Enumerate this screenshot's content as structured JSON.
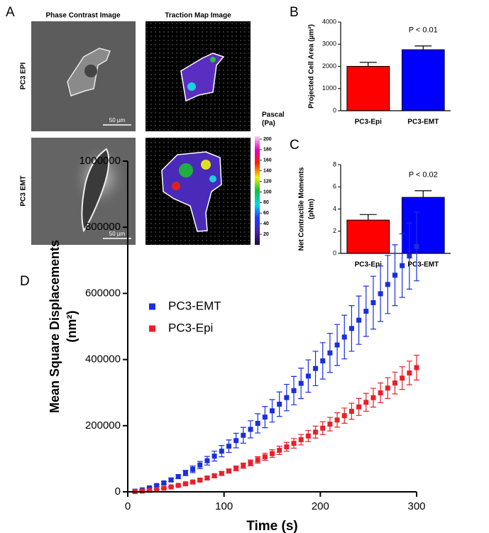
{
  "panel_labels": [
    "A",
    "B",
    "C",
    "D"
  ],
  "panel_a": {
    "columns": [
      "Phase Contrast Image",
      "Traction Map Image"
    ],
    "rows": [
      "PC3 EPI",
      "PC3 EMT"
    ],
    "scale_bar": "50 µm",
    "colorbar_title": [
      "Pascal",
      "(Pa)"
    ],
    "colorbar_ticks": [
      20,
      40,
      60,
      80,
      100,
      120,
      140,
      160,
      180,
      200
    ]
  },
  "chart_data": [
    {
      "type": "bar",
      "ylabel": [
        "Projected Cell Area (µm²)"
      ],
      "categories": [
        "PC3-Epi",
        "PC3-EMT"
      ],
      "values": [
        2000,
        2750
      ],
      "errors": [
        180,
        170
      ],
      "colors": [
        "#ff0000",
        "#0000ff"
      ],
      "annotation": "P < 0.01",
      "ylim": [
        0,
        4000
      ],
      "yticks": [
        0,
        1000,
        2000,
        3000,
        4000
      ]
    },
    {
      "type": "bar",
      "ylabel": [
        "Net Contractile Moments",
        "(pNm)"
      ],
      "categories": [
        "PC3-Epi",
        "PC3-EMT"
      ],
      "values": [
        3.0,
        5.05
      ],
      "errors": [
        0.5,
        0.6
      ],
      "colors": [
        "#ff0000",
        "#0000ff"
      ],
      "annotation": "P < 0.02",
      "ylim": [
        0,
        8
      ],
      "yticks": [
        0,
        2,
        4,
        6,
        8
      ]
    },
    {
      "type": "scatter",
      "xlabel": "Time (s)",
      "ylabel": [
        "Mean Square Displacements",
        "(nm²)"
      ],
      "legend": "upper-left",
      "x": [
        7.5,
        15,
        22.5,
        30,
        37.5,
        45,
        52.5,
        60,
        67.5,
        75,
        82.5,
        90,
        97.5,
        105,
        112.5,
        120,
        127.5,
        135,
        142.5,
        150,
        157.5,
        165,
        172.5,
        180,
        187.5,
        195,
        202.5,
        210,
        217.5,
        225,
        232.5,
        240,
        247.5,
        255,
        262.5,
        270,
        277.5,
        285,
        292.5,
        300
      ],
      "series": [
        {
          "name": "PC3-EMT",
          "color": "#1a2ee0",
          "values": [
            2000,
            6000,
            12000,
            19000,
            27000,
            36000,
            46000,
            57000,
            68000,
            81000,
            94000,
            108000,
            123000,
            138000,
            155000,
            171000,
            189000,
            207000,
            226000,
            245000,
            265000,
            285000,
            306000,
            328000,
            350000,
            373000,
            396000,
            420000,
            444000,
            468000,
            494000,
            519000,
            546000,
            572000,
            599000,
            627000,
            655000,
            684000,
            713000,
            742000
          ],
          "errors": [
            300,
            1000,
            2000,
            3000,
            4000,
            5000,
            6000,
            8000,
            10000,
            11000,
            13000,
            15000,
            17000,
            19000,
            22000,
            24000,
            26000,
            29000,
            32000,
            34000,
            37000,
            40000,
            43000,
            46000,
            49000,
            52000,
            55000,
            59000,
            62000,
            66000,
            69000,
            73000,
            76000,
            80000,
            84000,
            88000,
            92000,
            96000,
            100000,
            104000
          ]
        },
        {
          "name": "PC3-Epi",
          "color": "#e8202a",
          "values": [
            700,
            2300,
            4600,
            7500,
            11000,
            14900,
            19400,
            24300,
            29700,
            35500,
            41900,
            48500,
            55600,
            63000,
            70900,
            79100,
            87600,
            96600,
            105900,
            115500,
            125500,
            136000,
            146600,
            157600,
            168900,
            180600,
            192600,
            204700,
            217300,
            230300,
            243600,
            256800,
            270600,
            284700,
            299300,
            313700,
            329100,
            343900,
            359400,
            375600
          ],
          "errors": [
            100,
            200,
            500,
            800,
            1100,
            1500,
            1900,
            2400,
            3000,
            3600,
            4200,
            4900,
            5600,
            6300,
            7100,
            7900,
            8800,
            9700,
            10600,
            11600,
            12600,
            13600,
            14700,
            15800,
            16900,
            18100,
            19300,
            20500,
            21700,
            23000,
            24400,
            25700,
            27100,
            28500,
            29900,
            31400,
            32900,
            34400,
            35900,
            37600
          ]
        }
      ],
      "xlim": [
        0,
        300
      ],
      "xticks": [
        0,
        100,
        200,
        300
      ],
      "ylim": [
        0,
        1000000
      ],
      "yticks": [
        0,
        200000,
        400000,
        600000,
        800000,
        1000000
      ]
    }
  ]
}
